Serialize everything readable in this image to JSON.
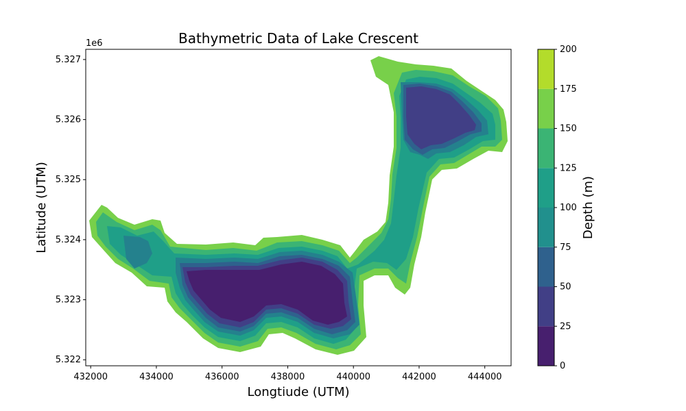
{
  "chart_data": {
    "type": "heatmap",
    "title": "Bathymetric Data of Lake Crescent",
    "xlabel": "Longtiude (UTM)",
    "ylabel": "Latitude (UTM)",
    "x_ticks": [
      "432000",
      "434000",
      "436000",
      "438000",
      "440000",
      "442000",
      "444000"
    ],
    "y_ticks": [
      "5.322",
      "5.323",
      "5.324",
      "5.325",
      "5.326",
      "5.327"
    ],
    "y_offset_text": "1e6",
    "xlim": [
      431850,
      444800
    ],
    "ylim": [
      5321900,
      5327170
    ],
    "colorbar": {
      "label": "Depth (m)",
      "ticks": [
        "0",
        "25",
        "50",
        "75",
        "100",
        "125",
        "150",
        "175",
        "200"
      ],
      "levels": [
        0,
        25,
        50,
        75,
        100,
        125,
        150,
        175,
        200
      ],
      "colors": [
        "#471f6e",
        "#413f86",
        "#2f618d",
        "#21908d",
        "#1f9f88",
        "#3bb474",
        "#78d04a",
        "#b3dc2b",
        "#d6e21a"
      ]
    },
    "grid": false,
    "colors": {
      "depth_0_25": "#471f6e",
      "depth_25_50": "#423f86",
      "depth_50_75": "#2f618d",
      "depth_75_100": "#24818d",
      "depth_100_125": "#1f9f88",
      "depth_125_150": "#3bb474",
      "depth_150_175": "#78d04a"
    }
  }
}
